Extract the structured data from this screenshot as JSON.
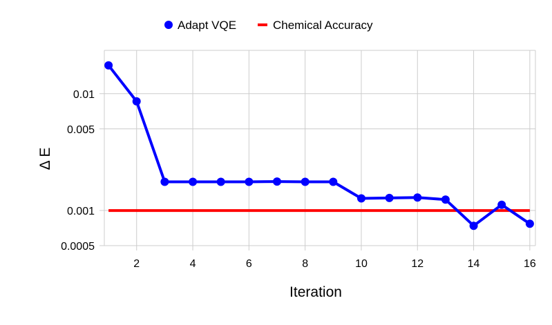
{
  "chart_data": {
    "type": "line",
    "title": "",
    "xlabel": "Iteration",
    "ylabel": "Δ E",
    "yscale": "log",
    "xlim": [
      0.85,
      16.2
    ],
    "ylim": [
      0.0005,
      0.0235
    ],
    "xticks": [
      2,
      4,
      6,
      8,
      10,
      12,
      14,
      16
    ],
    "xtick_labels": [
      "2",
      "4",
      "6",
      "8",
      "10",
      "12",
      "14",
      "16"
    ],
    "yticks": [
      0.0005,
      0.001,
      0.005,
      0.01
    ],
    "ytick_labels": [
      "0.0005",
      "0.001",
      "0.005",
      "0.01"
    ],
    "grid": true,
    "legend_position": "top-center",
    "series": [
      {
        "name": "Adapt VQE",
        "style": "line-markers",
        "color": "#0000ff",
        "x": [
          1,
          2,
          3,
          4,
          5,
          6,
          7,
          8,
          9,
          10,
          11,
          12,
          13,
          14,
          15,
          16
        ],
        "y": [
          0.0175,
          0.0086,
          0.00176,
          0.00176,
          0.00176,
          0.00176,
          0.00177,
          0.00176,
          0.00176,
          0.00127,
          0.00128,
          0.00129,
          0.00124,
          0.00074,
          0.00112,
          0.00077
        ]
      },
      {
        "name": "Chemical Accuracy",
        "style": "line",
        "color": "#ff0000",
        "x": [
          1,
          16
        ],
        "y": [
          0.001,
          0.001
        ]
      }
    ]
  }
}
